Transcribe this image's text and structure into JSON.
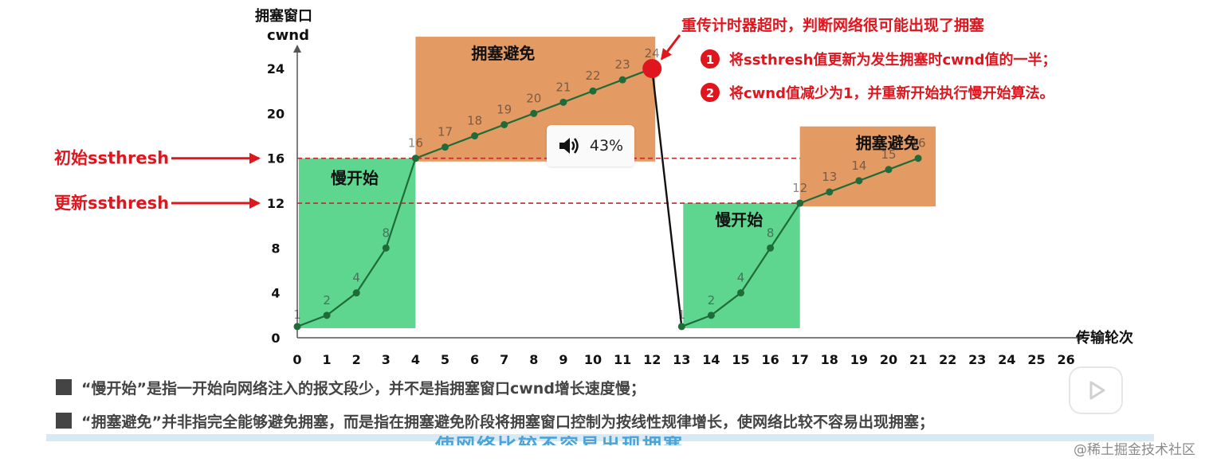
{
  "chart_data": {
    "type": "line",
    "y_axis_title": [
      "拥塞窗口",
      "cwnd"
    ],
    "x_axis_title": "传输轮次",
    "x_ticks": [
      0,
      1,
      2,
      3,
      4,
      5,
      6,
      7,
      8,
      9,
      10,
      11,
      12,
      13,
      14,
      15,
      16,
      17,
      18,
      19,
      20,
      21,
      22,
      23,
      24,
      25,
      26
    ],
    "y_ticks": [
      0,
      4,
      8,
      12,
      16,
      20,
      24
    ],
    "xlim": [
      0,
      26
    ],
    "ylim": [
      0,
      24
    ],
    "series": [
      {
        "x": [
          0,
          1,
          2,
          3,
          4,
          5,
          6,
          7,
          8,
          9,
          10,
          11,
          12,
          13,
          14,
          15,
          16,
          17,
          18,
          19,
          20,
          21
        ],
        "values": [
          1,
          2,
          4,
          8,
          16,
          17,
          18,
          19,
          20,
          21,
          22,
          23,
          24,
          1,
          2,
          4,
          8,
          12,
          13,
          14,
          15,
          16
        ],
        "point_labels": [
          "1",
          "2",
          "4",
          "8",
          "16",
          "17",
          "18",
          "19",
          "20",
          "21",
          "22",
          "23",
          "24",
          "1",
          "2",
          "4",
          "8",
          "12",
          "13",
          "14",
          "15",
          "16"
        ]
      }
    ],
    "thresholds": [
      {
        "value": 16,
        "label": "初始ssthresh"
      },
      {
        "value": 12,
        "label": "更新ssthresh"
      }
    ],
    "regions": [
      {
        "label": "慢开始",
        "kind": "slow-start",
        "x": [
          0,
          4
        ],
        "y": [
          0,
          16
        ]
      },
      {
        "label": "拥塞避免",
        "kind": "avoidance",
        "x": [
          4,
          12
        ],
        "y": [
          16,
          24
        ]
      },
      {
        "label": "慢开始",
        "kind": "slow-start",
        "x": [
          13,
          17
        ],
        "y": [
          0,
          12
        ]
      },
      {
        "label": "拥塞避免",
        "kind": "avoidance",
        "x": [
          17,
          21
        ],
        "y": [
          12,
          16
        ]
      }
    ],
    "event": {
      "x": 12,
      "y": 24,
      "title": "重传计时器超时，判断网络很可能出现了拥塞",
      "steps": [
        {
          "n": "1",
          "text": "将ssthresh值更新为发生拥塞时cwnd值的一半；"
        },
        {
          "n": "2",
          "text": "将cwnd值减少为1，并重新开始执行慢开始算法。"
        }
      ]
    },
    "colors": {
      "slow_start": "#5fd68f",
      "avoidance": "#e39a63",
      "line": "#1f6b3a",
      "annotation": "#e0161f",
      "threshold": "#c6262e"
    },
    "grid": false
  },
  "notes": [
    "“慢开始”是指一开始向网络注入的报文段少，并不是指拥塞窗口cwnd增长速度慢；",
    "“拥塞避免”并非指完全能够避免拥塞，而是指在拥塞避免阶段将拥塞窗口控制为按线性规律增长，使网络比较不容易出现拥塞；"
  ],
  "player": {
    "volume_icon": "speaker-icon",
    "volume_label": "43%",
    "play_icon": "play-icon",
    "subtitle_peek": "使网络比较不容易出现拥塞"
  },
  "watermark": "@稀土掘金技术社区"
}
